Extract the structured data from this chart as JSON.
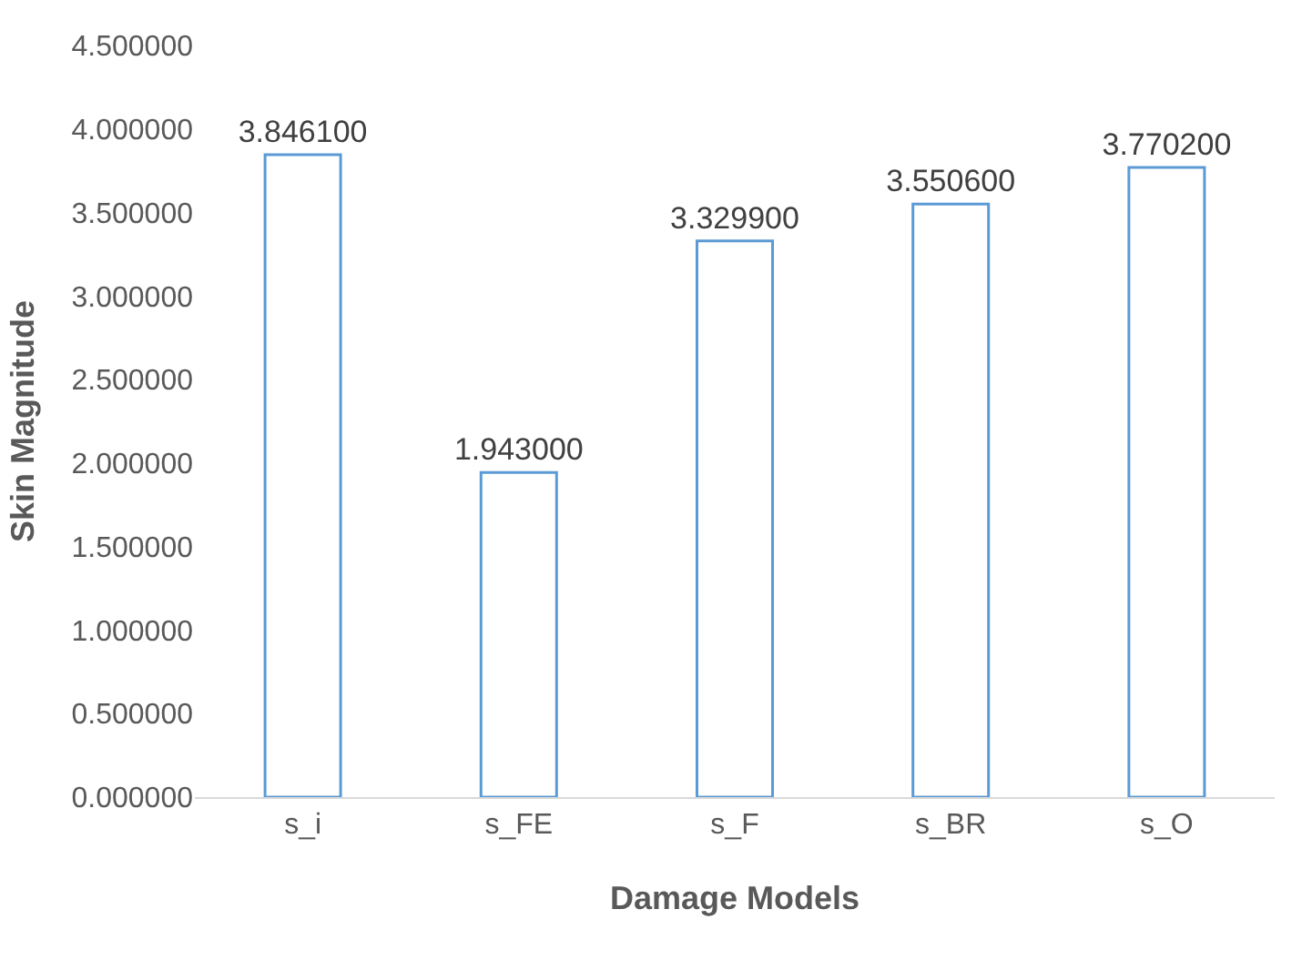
{
  "chart_data": {
    "type": "bar",
    "xlabel": "Damage Models",
    "ylabel": "Skin Magnitude",
    "categories": [
      "s_i",
      "s_FE",
      "s_F",
      "s_BR",
      "s_O"
    ],
    "values": [
      3.8461,
      1.943,
      3.3299,
      3.5506,
      3.7702
    ],
    "value_labels": [
      "3.846100",
      "1.943000",
      "3.329900",
      "3.550600",
      "3.770200"
    ],
    "color": "#5b9bd5",
    "ylim": [
      0,
      4.5
    ],
    "yticks": [
      {
        "value": 0,
        "label": "0.000000"
      },
      {
        "value": 0.5,
        "label": "0.500000"
      },
      {
        "value": 1,
        "label": "1.000000"
      },
      {
        "value": 1.5,
        "label": "1.500000"
      },
      {
        "value": 2,
        "label": "2.000000"
      },
      {
        "value": 2.5,
        "label": "2.500000"
      },
      {
        "value": 3,
        "label": "3.000000"
      },
      {
        "value": 3.5,
        "label": "3.500000"
      },
      {
        "value": 4,
        "label": "4.000000"
      },
      {
        "value": 4.5,
        "label": "4.500000"
      }
    ],
    "legend": false
  }
}
